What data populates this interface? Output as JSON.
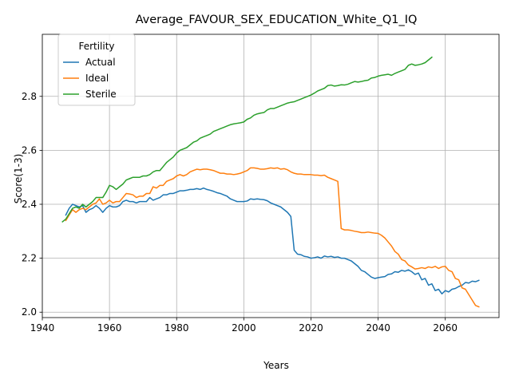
{
  "chart_data": {
    "type": "line",
    "title": "Average_FAVOUR_SEX_EDUCATION_White_Q1_IQ",
    "xlabel": "Years",
    "ylabel": "Score(1-3)",
    "xlim": [
      1940,
      2076
    ],
    "ylim": [
      1.98,
      3.03
    ],
    "xticks": [
      1940,
      1960,
      1980,
      2000,
      2020,
      2040,
      2060
    ],
    "yticks": [
      2.0,
      2.2,
      2.4,
      2.6,
      2.8
    ],
    "grid": true,
    "legend": {
      "title": "Fertility",
      "placement": "top-left"
    },
    "series": [
      {
        "name": "Actual",
        "color": "#1f77b4",
        "x": [
          1947,
          1948,
          1949,
          1950,
          1951,
          1952,
          1953,
          1954,
          1955,
          1956,
          1957,
          1958,
          1959,
          1960,
          1961,
          1962,
          1963,
          1964,
          1965,
          1966,
          1967,
          1968,
          1969,
          1970,
          1971,
          1972,
          1973,
          1974,
          1975,
          1976,
          1977,
          1978,
          1979,
          1980,
          1981,
          1982,
          1983,
          1984,
          1985,
          1986,
          1987,
          1988,
          1989,
          1990,
          1991,
          1992,
          1993,
          1994,
          1995,
          1996,
          1997,
          1998,
          1999,
          2000,
          2001,
          2002,
          2003,
          2004,
          2005,
          2006,
          2007,
          2008,
          2009,
          2010,
          2011,
          2012,
          2013,
          2014,
          2015,
          2016,
          2017,
          2018,
          2019,
          2020,
          2021,
          2022,
          2023,
          2024,
          2025,
          2026,
          2027,
          2028,
          2029,
          2030,
          2031,
          2032,
          2033,
          2034,
          2035,
          2036,
          2037,
          2038,
          2039,
          2040,
          2041,
          2042,
          2043,
          2044,
          2045,
          2046,
          2047,
          2048,
          2049,
          2050,
          2051,
          2052,
          2053,
          2054,
          2055,
          2056,
          2057,
          2058,
          2059,
          2060,
          2061,
          2062,
          2063,
          2064,
          2065,
          2066,
          2067,
          2068,
          2069,
          2070
        ],
        "values": [
          2.36,
          2.385,
          2.4,
          2.395,
          2.39,
          2.395,
          2.37,
          2.38,
          2.385,
          2.395,
          2.385,
          2.37,
          2.385,
          2.395,
          2.39,
          2.39,
          2.395,
          2.41,
          2.415,
          2.41,
          2.41,
          2.405,
          2.41,
          2.41,
          2.41,
          2.425,
          2.415,
          2.42,
          2.425,
          2.435,
          2.435,
          2.44,
          2.44,
          2.445,
          2.45,
          2.45,
          2.452,
          2.455,
          2.455,
          2.458,
          2.455,
          2.46,
          2.455,
          2.452,
          2.448,
          2.443,
          2.44,
          2.435,
          2.43,
          2.42,
          2.415,
          2.41,
          2.41,
          2.41,
          2.412,
          2.42,
          2.418,
          2.42,
          2.418,
          2.417,
          2.413,
          2.405,
          2.4,
          2.395,
          2.39,
          2.38,
          2.37,
          2.355,
          2.23,
          2.215,
          2.213,
          2.207,
          2.205,
          2.2,
          2.202,
          2.205,
          2.2,
          2.208,
          2.205,
          2.207,
          2.203,
          2.205,
          2.2,
          2.2,
          2.195,
          2.19,
          2.18,
          2.17,
          2.155,
          2.15,
          2.14,
          2.13,
          2.125,
          2.128,
          2.13,
          2.132,
          2.14,
          2.142,
          2.15,
          2.148,
          2.155,
          2.152,
          2.157,
          2.15,
          2.14,
          2.145,
          2.12,
          2.125,
          2.1,
          2.105,
          2.08,
          2.085,
          2.068,
          2.08,
          2.075,
          2.085,
          2.088,
          2.095,
          2.1,
          2.11,
          2.108,
          2.115,
          2.113,
          2.118
        ]
      },
      {
        "name": "Ideal",
        "color": "#ff7f0e",
        "x": [
          1947,
          1948,
          1949,
          1950,
          1951,
          1952,
          1953,
          1954,
          1955,
          1956,
          1957,
          1958,
          1959,
          1960,
          1961,
          1962,
          1963,
          1964,
          1965,
          1966,
          1967,
          1968,
          1969,
          1970,
          1971,
          1972,
          1973,
          1974,
          1975,
          1976,
          1977,
          1978,
          1979,
          1980,
          1981,
          1982,
          1983,
          1984,
          1985,
          1986,
          1987,
          1988,
          1989,
          1990,
          1991,
          1992,
          1993,
          1994,
          1995,
          1996,
          1997,
          1998,
          1999,
          2000,
          2001,
          2002,
          2003,
          2004,
          2005,
          2006,
          2007,
          2008,
          2009,
          2010,
          2011,
          2012,
          2013,
          2014,
          2015,
          2016,
          2017,
          2018,
          2019,
          2020,
          2021,
          2022,
          2023,
          2024,
          2025,
          2026,
          2027,
          2028,
          2029,
          2030,
          2031,
          2032,
          2033,
          2034,
          2035,
          2036,
          2037,
          2038,
          2039,
          2040,
          2041,
          2042,
          2043,
          2044,
          2045,
          2046,
          2047,
          2048,
          2049,
          2050,
          2051,
          2052,
          2053,
          2054,
          2055,
          2056,
          2057,
          2058,
          2059,
          2060,
          2061,
          2062,
          2063,
          2064,
          2065,
          2066,
          2067,
          2068,
          2069,
          2070
        ],
        "values": [
          2.34,
          2.36,
          2.38,
          2.37,
          2.38,
          2.385,
          2.38,
          2.39,
          2.4,
          2.405,
          2.42,
          2.4,
          2.405,
          2.415,
          2.405,
          2.41,
          2.41,
          2.425,
          2.44,
          2.438,
          2.435,
          2.425,
          2.43,
          2.43,
          2.44,
          2.44,
          2.465,
          2.46,
          2.47,
          2.47,
          2.485,
          2.49,
          2.495,
          2.505,
          2.51,
          2.505,
          2.51,
          2.52,
          2.525,
          2.53,
          2.528,
          2.53,
          2.53,
          2.528,
          2.525,
          2.52,
          2.515,
          2.515,
          2.512,
          2.512,
          2.51,
          2.512,
          2.515,
          2.52,
          2.525,
          2.535,
          2.535,
          2.533,
          2.53,
          2.53,
          2.532,
          2.535,
          2.533,
          2.535,
          2.53,
          2.532,
          2.528,
          2.52,
          2.515,
          2.512,
          2.512,
          2.51,
          2.51,
          2.51,
          2.508,
          2.508,
          2.506,
          2.508,
          2.5,
          2.495,
          2.49,
          2.485,
          2.31,
          2.305,
          2.305,
          2.303,
          2.3,
          2.298,
          2.295,
          2.295,
          2.297,
          2.295,
          2.293,
          2.292,
          2.285,
          2.275,
          2.26,
          2.245,
          2.225,
          2.215,
          2.195,
          2.19,
          2.175,
          2.168,
          2.16,
          2.162,
          2.165,
          2.162,
          2.168,
          2.165,
          2.17,
          2.162,
          2.168,
          2.17,
          2.155,
          2.15,
          2.125,
          2.12,
          2.09,
          2.085,
          2.065,
          2.045,
          2.025,
          2.02
        ]
      },
      {
        "name": "Sterile",
        "color": "#2ca02c",
        "x": [
          1946,
          1947,
          1948,
          1949,
          1950,
          1951,
          1952,
          1953,
          1954,
          1955,
          1956,
          1957,
          1958,
          1959,
          1960,
          1961,
          1962,
          1963,
          1964,
          1965,
          1966,
          1967,
          1968,
          1969,
          1970,
          1971,
          1972,
          1973,
          1974,
          1975,
          1976,
          1977,
          1978,
          1979,
          1980,
          1981,
          1982,
          1983,
          1984,
          1985,
          1986,
          1987,
          1988,
          1989,
          1990,
          1991,
          1992,
          1993,
          1994,
          1995,
          1996,
          1997,
          1998,
          1999,
          2000,
          2001,
          2002,
          2003,
          2004,
          2005,
          2006,
          2007,
          2008,
          2009,
          2010,
          2011,
          2012,
          2013,
          2014,
          2015,
          2016,
          2017,
          2018,
          2019,
          2020,
          2021,
          2022,
          2023,
          2024,
          2025,
          2026,
          2027,
          2028,
          2029,
          2030,
          2031,
          2032,
          2033,
          2034,
          2035,
          2036,
          2037,
          2038,
          2039,
          2040,
          2041,
          2042,
          2043,
          2044,
          2045,
          2046,
          2047,
          2048,
          2049,
          2050,
          2051,
          2052,
          2053,
          2054,
          2055,
          2056
        ],
        "values": [
          2.335,
          2.345,
          2.365,
          2.385,
          2.39,
          2.385,
          2.4,
          2.39,
          2.4,
          2.41,
          2.425,
          2.425,
          2.425,
          2.445,
          2.47,
          2.465,
          2.455,
          2.465,
          2.475,
          2.49,
          2.495,
          2.5,
          2.5,
          2.5,
          2.505,
          2.505,
          2.51,
          2.52,
          2.525,
          2.525,
          2.54,
          2.555,
          2.565,
          2.575,
          2.59,
          2.6,
          2.605,
          2.61,
          2.62,
          2.63,
          2.635,
          2.645,
          2.65,
          2.655,
          2.66,
          2.67,
          2.675,
          2.68,
          2.685,
          2.69,
          2.695,
          2.698,
          2.7,
          2.702,
          2.705,
          2.715,
          2.72,
          2.73,
          2.735,
          2.738,
          2.74,
          2.75,
          2.755,
          2.755,
          2.76,
          2.765,
          2.77,
          2.775,
          2.778,
          2.78,
          2.785,
          2.79,
          2.795,
          2.8,
          2.805,
          2.812,
          2.82,
          2.825,
          2.83,
          2.84,
          2.842,
          2.838,
          2.84,
          2.843,
          2.842,
          2.845,
          2.85,
          2.855,
          2.853,
          2.855,
          2.858,
          2.86,
          2.868,
          2.87,
          2.875,
          2.878,
          2.88,
          2.882,
          2.878,
          2.885,
          2.89,
          2.895,
          2.9,
          2.915,
          2.92,
          2.915,
          2.917,
          2.92,
          2.925,
          2.935,
          2.945
        ]
      }
    ]
  }
}
